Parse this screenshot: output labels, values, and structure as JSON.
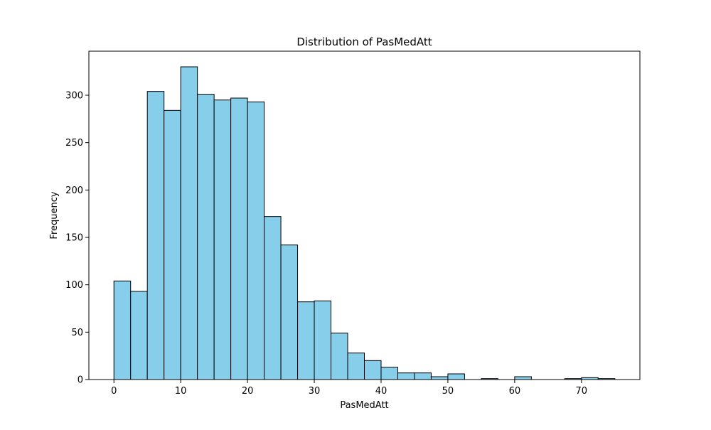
{
  "chart_data": {
    "type": "bar",
    "title": "Distribution of PasMedAtt",
    "xlabel": "PasMedAtt",
    "ylabel": "Frequency",
    "bin_edges": [
      0,
      2.5,
      5,
      7.5,
      10,
      12.5,
      15,
      17.5,
      20,
      22.5,
      25,
      27.5,
      30,
      32.5,
      35,
      37.5,
      40,
      42.5,
      45,
      47.5,
      50,
      52.5,
      55,
      57.5,
      60,
      62.5,
      65,
      67.5,
      70,
      72.5,
      75
    ],
    "values": [
      104,
      93,
      304,
      284,
      330,
      301,
      295,
      297,
      293,
      172,
      142,
      82,
      83,
      49,
      28,
      20,
      13,
      7,
      7,
      3,
      6,
      0,
      1,
      0,
      3,
      0,
      0,
      1,
      2,
      1
    ],
    "xlim": [
      -3.75,
      78.75
    ],
    "ylim": [
      0,
      346.5
    ],
    "xticks": [
      0,
      10,
      20,
      30,
      40,
      50,
      60,
      70
    ],
    "yticks": [
      0,
      50,
      100,
      150,
      200,
      250,
      300
    ],
    "grid": false,
    "colors": {
      "bar_fill": "#87CEEB",
      "bar_edge": "#000000"
    }
  }
}
